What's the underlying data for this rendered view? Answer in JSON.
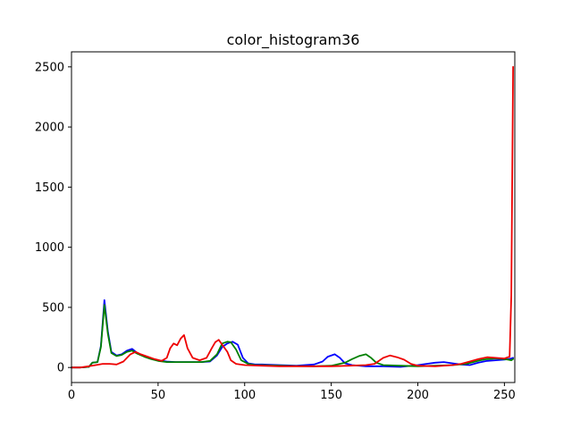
{
  "chart_data": {
    "type": "line",
    "title": "color_histogram36",
    "xlabel": "",
    "ylabel": "",
    "xlim": [
      0,
      256
    ],
    "ylim": [
      -125,
      2625
    ],
    "xticks": [
      0,
      50,
      100,
      150,
      200,
      250
    ],
    "yticks": [
      0,
      500,
      1000,
      1500,
      2000,
      2500
    ],
    "grid": false,
    "legend": "none",
    "series": [
      {
        "color": "#0000ff",
        "points": [
          [
            0,
            0
          ],
          [
            5,
            0
          ],
          [
            10,
            5
          ],
          [
            12,
            40
          ],
          [
            15,
            45
          ],
          [
            17,
            180
          ],
          [
            19,
            560
          ],
          [
            21,
            300
          ],
          [
            23,
            130
          ],
          [
            26,
            100
          ],
          [
            29,
            110
          ],
          [
            32,
            140
          ],
          [
            35,
            155
          ],
          [
            38,
            120
          ],
          [
            42,
            95
          ],
          [
            46,
            75
          ],
          [
            50,
            60
          ],
          [
            55,
            50
          ],
          [
            60,
            45
          ],
          [
            65,
            45
          ],
          [
            70,
            45
          ],
          [
            75,
            45
          ],
          [
            80,
            50
          ],
          [
            84,
            100
          ],
          [
            87,
            170
          ],
          [
            90,
            200
          ],
          [
            93,
            215
          ],
          [
            96,
            190
          ],
          [
            99,
            80
          ],
          [
            102,
            35
          ],
          [
            106,
            25
          ],
          [
            110,
            25
          ],
          [
            120,
            20
          ],
          [
            130,
            15
          ],
          [
            140,
            25
          ],
          [
            145,
            50
          ],
          [
            148,
            90
          ],
          [
            152,
            110
          ],
          [
            155,
            80
          ],
          [
            158,
            35
          ],
          [
            162,
            20
          ],
          [
            170,
            10
          ],
          [
            180,
            10
          ],
          [
            190,
            5
          ],
          [
            200,
            20
          ],
          [
            205,
            30
          ],
          [
            210,
            40
          ],
          [
            215,
            45
          ],
          [
            220,
            35
          ],
          [
            225,
            25
          ],
          [
            230,
            20
          ],
          [
            235,
            40
          ],
          [
            240,
            55
          ],
          [
            245,
            60
          ],
          [
            250,
            65
          ],
          [
            252,
            70
          ],
          [
            254,
            75
          ],
          [
            255,
            80
          ]
        ]
      },
      {
        "color": "#008000",
        "points": [
          [
            0,
            0
          ],
          [
            5,
            0
          ],
          [
            10,
            5
          ],
          [
            12,
            40
          ],
          [
            15,
            45
          ],
          [
            17,
            170
          ],
          [
            19,
            520
          ],
          [
            21,
            280
          ],
          [
            23,
            120
          ],
          [
            26,
            95
          ],
          [
            29,
            105
          ],
          [
            32,
            130
          ],
          [
            35,
            140
          ],
          [
            38,
            115
          ],
          [
            42,
            90
          ],
          [
            46,
            70
          ],
          [
            50,
            55
          ],
          [
            55,
            45
          ],
          [
            60,
            45
          ],
          [
            65,
            45
          ],
          [
            70,
            45
          ],
          [
            75,
            45
          ],
          [
            80,
            55
          ],
          [
            84,
            110
          ],
          [
            87,
            200
          ],
          [
            90,
            215
          ],
          [
            92,
            210
          ],
          [
            95,
            150
          ],
          [
            98,
            60
          ],
          [
            102,
            30
          ],
          [
            106,
            20
          ],
          [
            110,
            20
          ],
          [
            120,
            15
          ],
          [
            130,
            12
          ],
          [
            140,
            10
          ],
          [
            150,
            15
          ],
          [
            158,
            40
          ],
          [
            162,
            70
          ],
          [
            166,
            95
          ],
          [
            170,
            110
          ],
          [
            173,
            80
          ],
          [
            176,
            40
          ],
          [
            180,
            20
          ],
          [
            190,
            15
          ],
          [
            200,
            10
          ],
          [
            210,
            15
          ],
          [
            220,
            20
          ],
          [
            228,
            30
          ],
          [
            232,
            45
          ],
          [
            236,
            60
          ],
          [
            240,
            70
          ],
          [
            245,
            75
          ],
          [
            250,
            70
          ],
          [
            252,
            65
          ],
          [
            254,
            60
          ],
          [
            255,
            70
          ]
        ]
      },
      {
        "color": "#ee0000",
        "points": [
          [
            0,
            0
          ],
          [
            5,
            0
          ],
          [
            10,
            10
          ],
          [
            14,
            20
          ],
          [
            18,
            30
          ],
          [
            22,
            30
          ],
          [
            26,
            25
          ],
          [
            30,
            50
          ],
          [
            34,
            110
          ],
          [
            37,
            130
          ],
          [
            40,
            110
          ],
          [
            44,
            90
          ],
          [
            48,
            70
          ],
          [
            52,
            55
          ],
          [
            55,
            80
          ],
          [
            57,
            160
          ],
          [
            59,
            200
          ],
          [
            61,
            185
          ],
          [
            63,
            240
          ],
          [
            65,
            270
          ],
          [
            67,
            160
          ],
          [
            70,
            80
          ],
          [
            74,
            60
          ],
          [
            78,
            80
          ],
          [
            81,
            160
          ],
          [
            83,
            210
          ],
          [
            85,
            230
          ],
          [
            87,
            190
          ],
          [
            90,
            130
          ],
          [
            92,
            60
          ],
          [
            95,
            30
          ],
          [
            100,
            20
          ],
          [
            110,
            15
          ],
          [
            120,
            10
          ],
          [
            130,
            10
          ],
          [
            140,
            10
          ],
          [
            150,
            10
          ],
          [
            160,
            15
          ],
          [
            170,
            20
          ],
          [
            175,
            30
          ],
          [
            180,
            80
          ],
          [
            184,
            100
          ],
          [
            188,
            85
          ],
          [
            192,
            65
          ],
          [
            196,
            30
          ],
          [
            200,
            15
          ],
          [
            210,
            10
          ],
          [
            220,
            20
          ],
          [
            225,
            30
          ],
          [
            230,
            50
          ],
          [
            235,
            70
          ],
          [
            240,
            85
          ],
          [
            245,
            80
          ],
          [
            250,
            75
          ],
          [
            252,
            85
          ],
          [
            253,
            90
          ],
          [
            254,
            600
          ],
          [
            255,
            2500
          ]
        ]
      }
    ]
  }
}
